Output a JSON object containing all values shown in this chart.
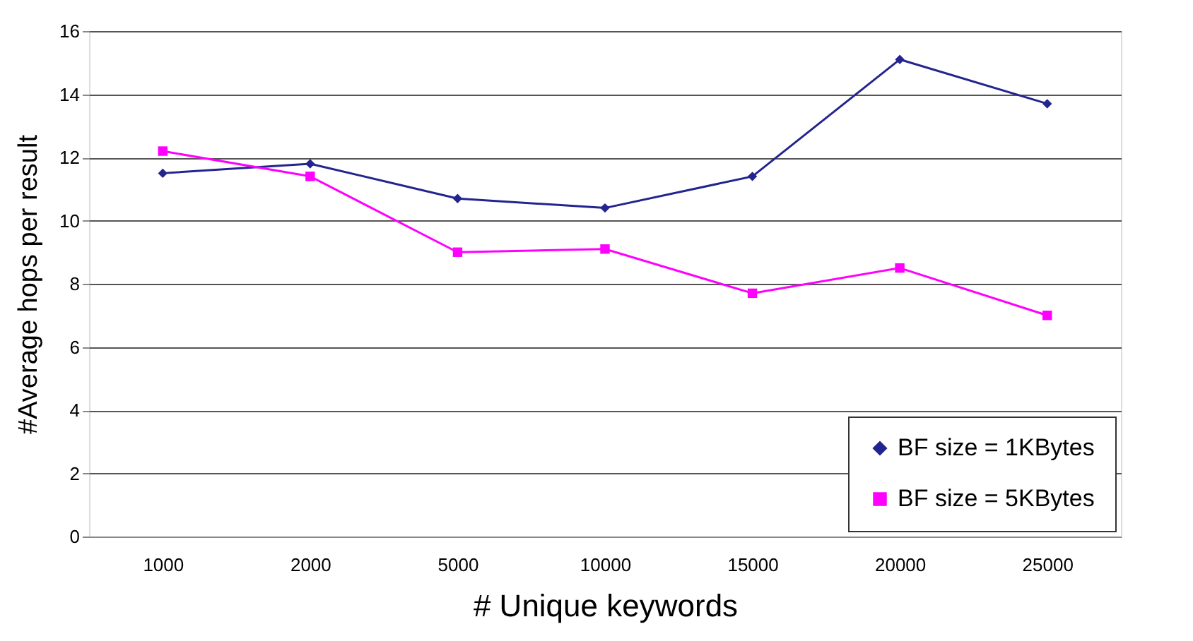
{
  "chart_data": {
    "type": "line",
    "xlabel": "# Unique keywords",
    "ylabel": "#Average hops per result",
    "categories": [
      "1000",
      "2000",
      "5000",
      "10000",
      "15000",
      "20000",
      "25000"
    ],
    "series": [
      {
        "name": "BF size = 1KBytes",
        "color": "#24248f",
        "marker": "diamond",
        "values": [
          11.5,
          11.8,
          10.7,
          10.4,
          11.4,
          15.1,
          13.7
        ]
      },
      {
        "name": "BF size = 5KBytes",
        "color": "#ff00ff",
        "marker": "square",
        "values": [
          12.2,
          11.4,
          9.0,
          9.1,
          7.7,
          8.5,
          7.0
        ]
      }
    ],
    "ylim": [
      0,
      16
    ],
    "yticks": [
      0,
      2,
      4,
      6,
      8,
      10,
      12,
      14,
      16
    ],
    "grid": "y",
    "legend": "bottom right"
  }
}
